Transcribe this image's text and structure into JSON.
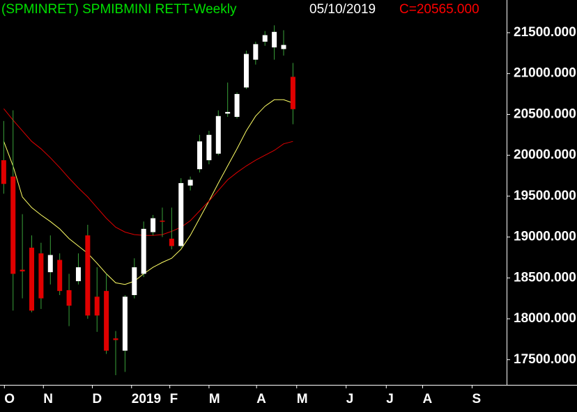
{
  "chart_data": {
    "type": "candlestick",
    "title": "(SPMINRET) SPMIBMINI RETT-Weekly",
    "date": "05/10/2019",
    "close_label": "C=20565.000",
    "title_color": "#00e000",
    "date_color": "#ffffff",
    "close_color": "#ff0000",
    "up_color": "#ffffff",
    "down_color": "#e00000",
    "wick_color": "#3aa23a",
    "categories": [
      null,
      null,
      null,
      null,
      null,
      null,
      null,
      null,
      null,
      null,
      null,
      null,
      null,
      null,
      null,
      null,
      null,
      null,
      null,
      null,
      null,
      null,
      null,
      null,
      null,
      null,
      null,
      null,
      null,
      null,
      null,
      null
    ],
    "open": [
      19940,
      19740,
      18600,
      18870,
      18800,
      18570,
      18720,
      18350,
      18460,
      19020,
      18270,
      18340,
      17760,
      17610,
      18290,
      18550,
      19060,
      19200,
      18980,
      18890,
      19630,
      19830,
      19940,
      20020,
      20510,
      20470,
      20830,
      21170,
      21390,
      21320,
      21300,
      20960
    ],
    "high": [
      20420,
      20550,
      19280,
      19020,
      18930,
      19020,
      18800,
      18550,
      18800,
      19150,
      18630,
      18550,
      17850,
      18290,
      18740,
      19190,
      19270,
      19360,
      19360,
      19720,
      19740,
      20250,
      20300,
      20550,
      20890,
      20770,
      21280,
      21390,
      21520,
      21590,
      21530,
      21130
    ],
    "low": [
      19530,
      18100,
      18250,
      18080,
      18120,
      18420,
      18290,
      17910,
      18420,
      18000,
      17840,
      17570,
      17310,
      17350,
      18250,
      18510,
      19020,
      19000,
      18850,
      18870,
      19570,
      19790,
      19890,
      20000,
      20470,
      20450,
      20810,
      21110,
      21340,
      21170,
      21220,
      20380
    ],
    "close": [
      19650,
      18550,
      18580,
      18100,
      18250,
      18780,
      18340,
      18160,
      18630,
      18040,
      18040,
      17610,
      17740,
      18270,
      18630,
      19100,
      19230,
      19190,
      18890,
      19660,
      19700,
      20170,
      20250,
      20480,
      20530,
      20750,
      21240,
      21360,
      21470,
      21510,
      21350,
      20565
    ],
    "overlays": [
      {
        "color": "#ffff66",
        "values": [
          20170,
          19870,
          19490,
          19360,
          19270,
          19190,
          19100,
          18980,
          18890,
          18800,
          18680,
          18550,
          18440,
          18420,
          18460,
          18550,
          18630,
          18690,
          18740,
          18850,
          19020,
          19230,
          19440,
          19660,
          19870,
          20080,
          20300,
          20480,
          20600,
          20680,
          20680,
          20640
        ]
      },
      {
        "color": "#e00000",
        "values": [
          20570,
          20430,
          20300,
          20170,
          20080,
          19970,
          19850,
          19720,
          19600,
          19490,
          19360,
          19230,
          19120,
          19060,
          19030,
          19020,
          19020,
          19030,
          19070,
          19120,
          19200,
          19320,
          19440,
          19570,
          19700,
          19790,
          19870,
          19940,
          20000,
          20060,
          20140,
          20170
        ]
      }
    ],
    "xlim": [
      -0.4,
      53.9
    ],
    "xticks": [
      {
        "value": 0.07,
        "label": "O"
      },
      {
        "value": 4.25,
        "label": "N"
      },
      {
        "value": 9.5,
        "label": "D"
      },
      {
        "value": 13.7,
        "label": "2019"
      },
      {
        "value": 17.8,
        "label": "F"
      },
      {
        "value": 22,
        "label": "M"
      },
      {
        "value": 27.1,
        "label": "A"
      },
      {
        "value": 31.4,
        "label": "M"
      },
      {
        "value": 36.7,
        "label": "J"
      },
      {
        "value": 41,
        "label": "J"
      },
      {
        "value": 44.9,
        "label": "A"
      },
      {
        "value": 50.2,
        "label": "S"
      }
    ],
    "ylim": [
      17200,
      21900
    ],
    "yticks": [
      {
        "value": 17500,
        "label": "17500.000"
      },
      {
        "value": 18000,
        "label": "18000.000"
      },
      {
        "value": 18500,
        "label": "18500.000"
      },
      {
        "value": 19000,
        "label": "19000.000"
      },
      {
        "value": 19500,
        "label": "19500.000"
      },
      {
        "value": 20000,
        "label": "20000.000"
      },
      {
        "value": 20500,
        "label": "20500.000"
      },
      {
        "value": 21000,
        "label": "21000.000"
      },
      {
        "value": 21500,
        "label": "21500.000"
      }
    ]
  }
}
